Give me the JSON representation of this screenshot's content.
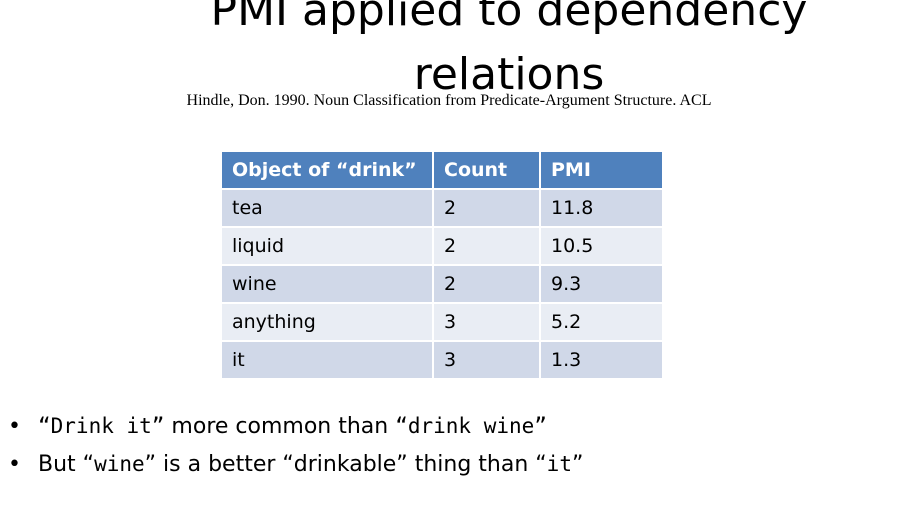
{
  "slide": {
    "title_line1": "PMI applied to dependency",
    "title_line2": "relations",
    "citation": "Hindle, Don. 1990. Noun Classification from Predicate-Argument Structure. ACL"
  },
  "table": {
    "headers": [
      "Object of “drink”",
      "Count",
      "PMI"
    ],
    "rows": [
      [
        "tea",
        "2",
        "11.8"
      ],
      [
        "liquid",
        "2",
        "10.5"
      ],
      [
        "wine",
        "2",
        "9.3"
      ],
      [
        "anything",
        "3",
        "5.2"
      ],
      [
        "it",
        "3",
        "1.3"
      ]
    ],
    "header_color": "#4f81bd",
    "row_color_odd": "#d0d8e8",
    "row_color_even": "#e9edf4"
  },
  "bullets": [
    {
      "marker": "•",
      "part1": "“Drink it”",
      "part2": " more common than ",
      "part3": "“drink wine”"
    },
    {
      "marker": "•",
      "part1": "But “",
      "part2": "wine",
      "part3": "” is a better “drinkable” thing than “",
      "part4": "it",
      "part5": "”"
    }
  ]
}
